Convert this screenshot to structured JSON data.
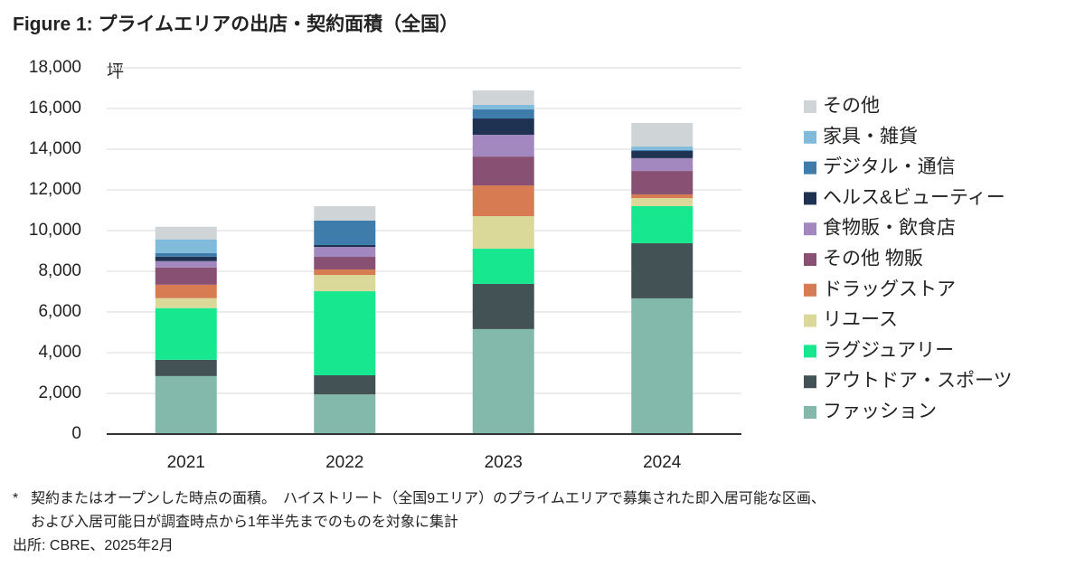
{
  "chart_data": {
    "type": "stacked-bar",
    "title": "Figure 1: プライムエリアの出店・契約面積（全国）",
    "y_unit": "坪",
    "categories": [
      "2021",
      "2022",
      "2023",
      "2024"
    ],
    "ylim": [
      0,
      18000
    ],
    "yticks": [
      0,
      {
        "value": 2000,
        "label": "2,000"
      },
      {
        "value": 4000,
        "label": "4,000"
      },
      {
        "value": 6000,
        "label": "6,000"
      },
      {
        "value": 8000,
        "label": "8,000"
      },
      {
        "value": 10000,
        "label": "10,000"
      },
      {
        "value": 12000,
        "label": "12,000"
      },
      {
        "value": 14000,
        "label": "14,000"
      },
      {
        "value": 16000,
        "label": "16,000"
      },
      {
        "value": 18000,
        "label": "18,000"
      }
    ],
    "grid": true,
    "legend": "right",
    "series": [
      {
        "name": "ファッション",
        "color": "#82b9ab",
        "values": [
          2850,
          1950,
          5160,
          6670
        ]
      },
      {
        "name": "アウトドア・スポーツ",
        "color": "#435254",
        "values": [
          800,
          940,
          2220,
          2710
        ]
      },
      {
        "name": "ラグジュアリー",
        "color": "#17e88f",
        "values": [
          2540,
          4130,
          1730,
          1820
        ]
      },
      {
        "name": "リユース",
        "color": "#dbd99a",
        "values": [
          490,
          800,
          1600,
          400
        ]
      },
      {
        "name": "ドラッグストア",
        "color": "#d67b52",
        "values": [
          660,
          270,
          1510,
          180
        ]
      },
      {
        "name": "その他 物販",
        "color": "#885073",
        "values": [
          850,
          620,
          1420,
          1150
        ]
      },
      {
        "name": "食物販・飲食店",
        "color": "#a388bf",
        "values": [
          310,
          490,
          1070,
          630
        ]
      },
      {
        "name": "ヘルス&ビューティー",
        "color": "#1f3251",
        "values": [
          220,
          90,
          800,
          350
        ]
      },
      {
        "name": "デジタル・通信",
        "color": "#3e7dab",
        "values": [
          180,
          1200,
          450,
          50
        ]
      },
      {
        "name": "家具・雑貨",
        "color": "#80bbdb",
        "values": [
          670,
          0,
          220,
          170
        ]
      },
      {
        "name": "その他",
        "color": "#cfd5d6",
        "values": [
          620,
          710,
          710,
          1160
        ]
      }
    ],
    "footnote_marker": "*",
    "footnote": [
      "契約またはオープンした時点の面積。　ハイストリート（全国9エリア）のプライムエリアで募集された即入居可能な区画、",
      "および入居可能日が調査時点から1年半先までのものを対象に集計"
    ],
    "source": "出所: CBRE、2025年2月"
  }
}
